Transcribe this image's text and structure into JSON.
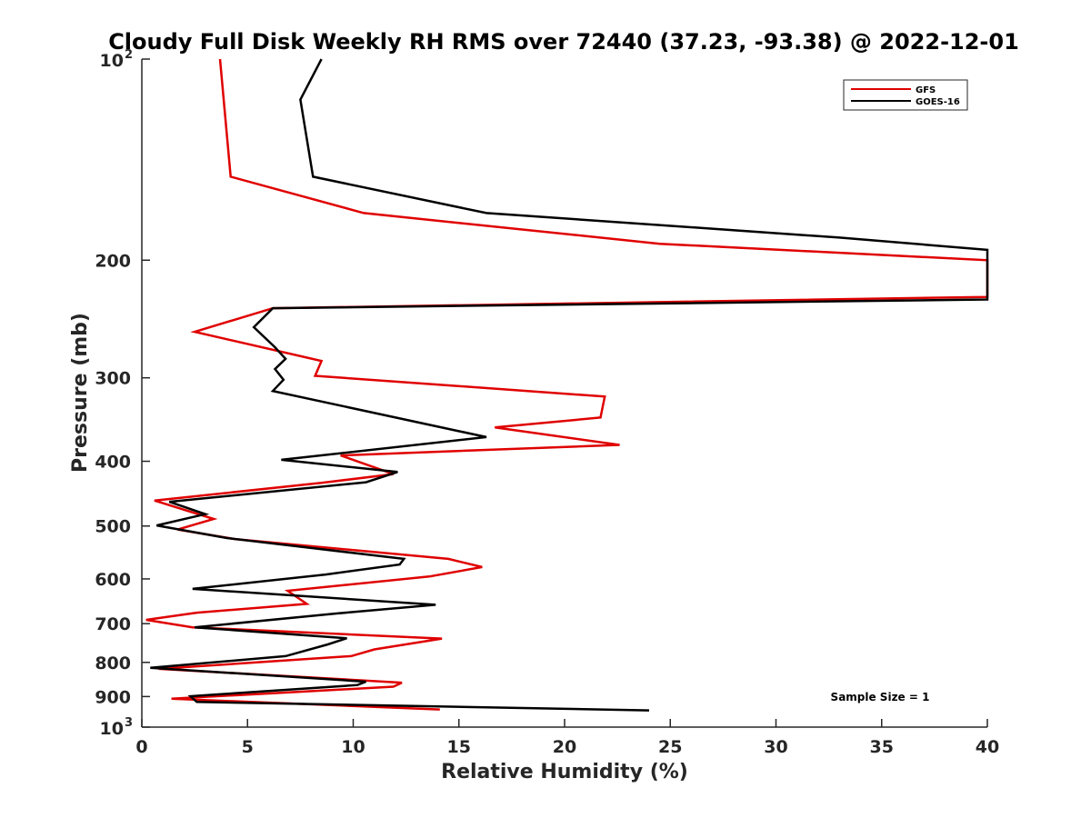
{
  "chart_data": {
    "type": "line",
    "title": "Cloudy Full Disk Weekly RH RMS over 72440 (37.23, -93.38) @ 2022-12-01",
    "xlabel": "Relative Humidity (%)",
    "ylabel": "Pressure (mb)",
    "xlim": [
      0,
      40
    ],
    "ylim": [
      100,
      1000
    ],
    "yscale": "log",
    "yreversed": true,
    "grid": false,
    "legend_position": "top-right",
    "x_ticks": [
      "0",
      "5",
      "10",
      "15",
      "20",
      "25",
      "30",
      "35",
      "40"
    ],
    "y_ticks": [
      {
        "value": 100,
        "base": "10",
        "exp": "2"
      },
      {
        "value": 200,
        "label": "200"
      },
      {
        "value": 300,
        "label": "300"
      },
      {
        "value": 400,
        "label": "400"
      },
      {
        "value": 500,
        "label": "500"
      },
      {
        "value": 600,
        "label": "600"
      },
      {
        "value": 700,
        "label": "700"
      },
      {
        "value": 800,
        "label": "800"
      },
      {
        "value": 900,
        "label": "900"
      },
      {
        "value": 1000,
        "base": "10",
        "exp": "3"
      }
    ],
    "annotation": "Sample Size = 1",
    "series": [
      {
        "name": "GFS",
        "color": "#e00000",
        "points": [
          [
            3.7,
            100
          ],
          [
            4.2,
            150
          ],
          [
            10.5,
            170
          ],
          [
            24.5,
            189
          ],
          [
            40,
            200
          ],
          [
            40,
            227
          ],
          [
            6.2,
            236
          ],
          [
            2.5,
            256
          ],
          [
            8.5,
            283
          ],
          [
            8.2,
            298
          ],
          [
            21.9,
            320
          ],
          [
            21.7,
            344
          ],
          [
            16.7,
            356
          ],
          [
            22.6,
            378
          ],
          [
            9.4,
            392
          ],
          [
            11.9,
            418
          ],
          [
            8.5,
            431
          ],
          [
            0.6,
            458
          ],
          [
            3.4,
            488
          ],
          [
            1.7,
            506
          ],
          [
            4.4,
            523
          ],
          [
            14.5,
            560
          ],
          [
            16.1,
            576
          ],
          [
            13.6,
            595
          ],
          [
            6.9,
            625
          ],
          [
            7.8,
            654
          ],
          [
            2.6,
            674
          ],
          [
            0.2,
            691
          ],
          [
            2.4,
            709
          ],
          [
            14.2,
            737
          ],
          [
            11.0,
            765
          ],
          [
            9.9,
            783
          ],
          [
            0.8,
            818
          ],
          [
            12.3,
            858
          ],
          [
            11.9,
            870
          ],
          [
            1.4,
            907
          ],
          [
            14.1,
            941
          ]
        ]
      },
      {
        "name": "GOES-16",
        "color": "#000000",
        "points": [
          [
            8.5,
            100
          ],
          [
            7.5,
            115
          ],
          [
            8.1,
            150
          ],
          [
            16.3,
            170
          ],
          [
            33.0,
            185
          ],
          [
            40,
            193
          ],
          [
            40,
            229
          ],
          [
            6.2,
            236
          ],
          [
            5.3,
            252
          ],
          [
            6.3,
            270
          ],
          [
            6.8,
            281
          ],
          [
            6.3,
            291
          ],
          [
            6.7,
            302
          ],
          [
            6.2,
            314
          ],
          [
            16.3,
            368
          ],
          [
            6.6,
            398
          ],
          [
            12.1,
            415
          ],
          [
            10.6,
            430
          ],
          [
            1.3,
            460
          ],
          [
            3.0,
            480
          ],
          [
            0.7,
            499
          ],
          [
            4.0,
            521
          ],
          [
            12.4,
            560
          ],
          [
            12.2,
            571
          ],
          [
            8.7,
            591
          ],
          [
            2.4,
            621
          ],
          [
            13.9,
            656
          ],
          [
            9.2,
            676
          ],
          [
            2.5,
            709
          ],
          [
            9.7,
            736
          ],
          [
            8.8,
            752
          ],
          [
            6.8,
            783
          ],
          [
            0.4,
            815
          ],
          [
            10.6,
            855
          ],
          [
            10.2,
            865
          ],
          [
            2.3,
            899
          ],
          [
            2.6,
            917
          ],
          [
            24.0,
            944
          ]
        ]
      }
    ]
  }
}
